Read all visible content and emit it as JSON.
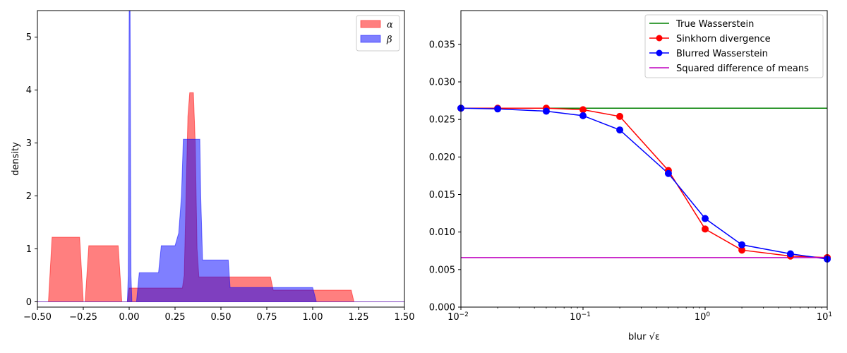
{
  "chart_data": [
    {
      "type": "area",
      "xlabel": "",
      "ylabel": "density",
      "xlim": [
        -0.5,
        1.5
      ],
      "ylim": [
        -0.1,
        5.5
      ],
      "xscale": "linear",
      "x_ticks": [
        -0.5,
        -0.25,
        0.0,
        0.25,
        0.5,
        0.75,
        1.0,
        1.25,
        1.5
      ],
      "x_tick_labels": [
        "−0.50",
        "−0.25",
        "0.00",
        "0.25",
        "0.50",
        "0.75",
        "1.00",
        "1.25",
        "1.50"
      ],
      "y_ticks": [
        0,
        1,
        2,
        3,
        4,
        5
      ],
      "y_tick_labels": [
        "0",
        "1",
        "2",
        "3",
        "4",
        "5"
      ],
      "grid": false,
      "legend_position": "top-right",
      "series": [
        {
          "name": "α",
          "color": "#ff0000",
          "points": [
            [
              -0.5,
              0
            ],
            [
              -0.44,
              0
            ],
            [
              -0.42,
              1.22
            ],
            [
              -0.27,
              1.22
            ],
            [
              -0.25,
              0
            ],
            [
              -0.24,
              0
            ],
            [
              -0.22,
              1.06
            ],
            [
              -0.06,
              1.06
            ],
            [
              -0.04,
              0
            ],
            [
              -0.01,
              0
            ],
            [
              0.0,
              0.26
            ],
            [
              0.29,
              0.26
            ],
            [
              0.3,
              0.5
            ],
            [
              0.31,
              2.0
            ],
            [
              0.32,
              3.5
            ],
            [
              0.33,
              3.95
            ],
            [
              0.35,
              3.95
            ],
            [
              0.36,
              3.0
            ],
            [
              0.37,
              1.0
            ],
            [
              0.38,
              0.47
            ],
            [
              0.77,
              0.47
            ],
            [
              0.785,
              0.22
            ],
            [
              1.21,
              0.22
            ],
            [
              1.225,
              0
            ],
            [
              1.5,
              0
            ]
          ]
        },
        {
          "name": "β",
          "color": "#0000ff",
          "points": [
            [
              -0.5,
              0
            ],
            [
              -0.01,
              0
            ],
            [
              -0.005,
              0.5
            ],
            [
              0.0,
              5.5
            ],
            [
              0.005,
              5.5
            ],
            [
              0.01,
              0.5
            ],
            [
              0.015,
              0
            ],
            [
              0.04,
              0
            ],
            [
              0.055,
              0.55
            ],
            [
              0.16,
              0.55
            ],
            [
              0.175,
              1.06
            ],
            [
              0.25,
              1.06
            ],
            [
              0.27,
              1.3
            ],
            [
              0.285,
              2.0
            ],
            [
              0.295,
              3.07
            ],
            [
              0.385,
              3.07
            ],
            [
              0.39,
              2.0
            ],
            [
              0.4,
              0.79
            ],
            [
              0.54,
              0.79
            ],
            [
              0.55,
              0.27
            ],
            [
              1.0,
              0.27
            ],
            [
              1.02,
              0
            ],
            [
              1.5,
              0
            ]
          ]
        }
      ]
    },
    {
      "type": "line",
      "xlabel": "blur √ε",
      "ylabel": "",
      "xlim": [
        0.01,
        10
      ],
      "ylim": [
        0.0,
        0.0395
      ],
      "xscale": "log",
      "x_ticks": [
        0.01,
        0.1,
        1,
        10
      ],
      "x_tick_labels": [
        "10−2",
        "10−1",
        "100",
        "101"
      ],
      "y_ticks": [
        0.0,
        0.005,
        0.01,
        0.015,
        0.02,
        0.025,
        0.03,
        0.035
      ],
      "y_tick_labels": [
        "0.000",
        "0.005",
        "0.010",
        "0.015",
        "0.020",
        "0.025",
        "0.030",
        "0.035"
      ],
      "grid": false,
      "legend_position": "top-right",
      "series": [
        {
          "name": "True Wasserstein",
          "color": "#008000",
          "marker": false,
          "points": [
            [
              0.01,
              0.0265
            ],
            [
              10,
              0.0265
            ]
          ]
        },
        {
          "name": "Sinkhorn divergence",
          "color": "#ff0000",
          "marker": true,
          "points": [
            [
              0.01,
              0.0265
            ],
            [
              0.02,
              0.0265
            ],
            [
              0.05,
              0.0265
            ],
            [
              0.1,
              0.0263
            ],
            [
              0.2,
              0.0254
            ],
            [
              0.5,
              0.0182
            ],
            [
              1,
              0.0104
            ],
            [
              2,
              0.0076
            ],
            [
              5,
              0.0068
            ],
            [
              10,
              0.0066
            ]
          ]
        },
        {
          "name": "Blurred Wasserstein",
          "color": "#0000ff",
          "marker": true,
          "points": [
            [
              0.01,
              0.0265
            ],
            [
              0.02,
              0.0264
            ],
            [
              0.05,
              0.0261
            ],
            [
              0.1,
              0.0255
            ],
            [
              0.2,
              0.0236
            ],
            [
              0.5,
              0.0178
            ],
            [
              1,
              0.0118
            ],
            [
              2,
              0.0083
            ],
            [
              5,
              0.0071
            ],
            [
              10,
              0.0064
            ]
          ]
        },
        {
          "name": "Squared difference of means",
          "color": "#bf00bf",
          "marker": false,
          "points": [
            [
              0.01,
              0.0066
            ],
            [
              10,
              0.0066
            ]
          ]
        }
      ]
    }
  ]
}
